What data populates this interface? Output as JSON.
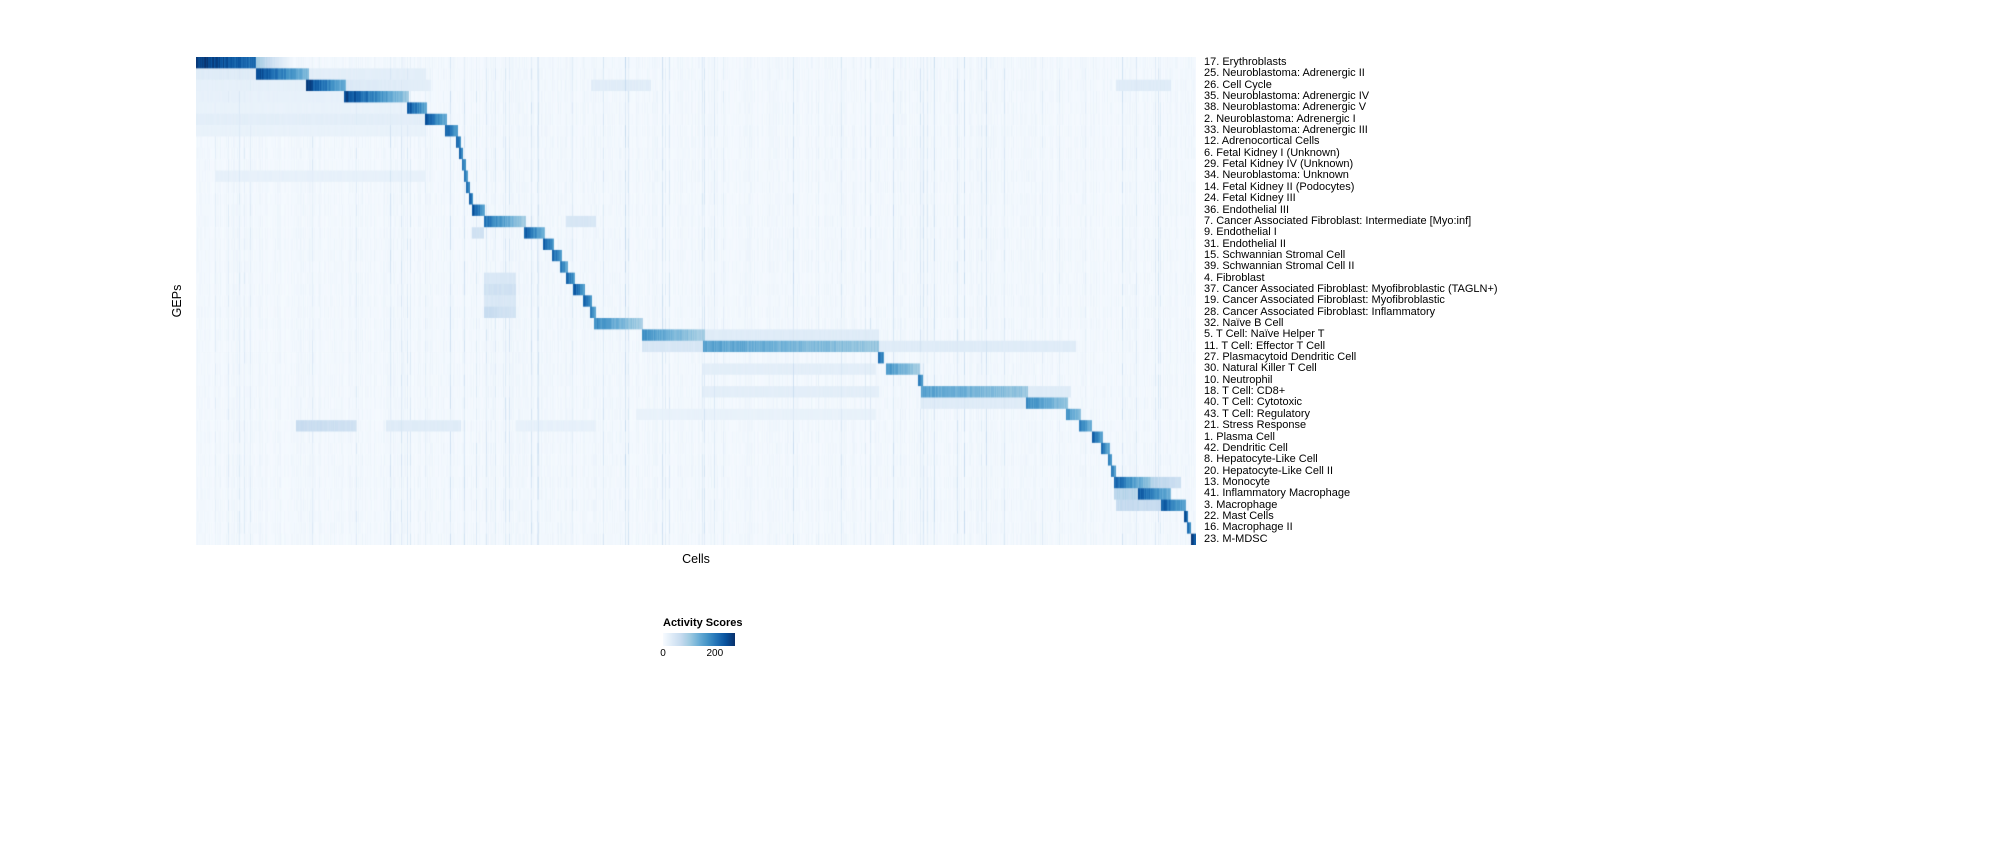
{
  "chart_data": {
    "type": "heatmap",
    "title": "",
    "xlabel": "Cells",
    "ylabel": "GEPs",
    "grid": false,
    "colormap": "Blues",
    "colormap_stops": [
      "#f7fbff",
      "#deebf7",
      "#c6dbef",
      "#9ecae1",
      "#6baed6",
      "#4292c6",
      "#2171b5",
      "#08519c",
      "#08306b"
    ],
    "score_scale_max": 255,
    "legend": {
      "title": "Activity Scores",
      "min_label": "0",
      "max_label": "200",
      "ticks": [
        0,
        200
      ],
      "position": "bottom-center"
    },
    "n_rows": 43,
    "row_axis": "GEPs (right-side labels)",
    "col_axis": "Cells (unlabeled columns, ~1000 shown)",
    "rows": [
      {
        "label": "17. Erythroblasts",
        "segments": [
          {
            "s": 0.0,
            "e": 0.06,
            "v": 250,
            "f": 0.25
          },
          {
            "s": 0.06,
            "e": 0.095,
            "v": 90,
            "f": 0.9
          }
        ]
      },
      {
        "label": "25. Neuroblastoma: Adrenergic II",
        "segments": [
          {
            "s": 0.0,
            "e": 0.06,
            "v": 30,
            "f": 0
          },
          {
            "s": 0.06,
            "e": 0.113,
            "v": 240,
            "f": 0.55
          },
          {
            "s": 0.113,
            "e": 0.23,
            "v": 25,
            "f": 0
          }
        ]
      },
      {
        "label": "26. Cell Cycle",
        "segments": [
          {
            "s": 0.0,
            "e": 0.11,
            "v": 22,
            "f": 0
          },
          {
            "s": 0.11,
            "e": 0.15,
            "v": 240,
            "f": 0.5
          },
          {
            "s": 0.15,
            "e": 0.235,
            "v": 35,
            "f": 0.3
          },
          {
            "s": 0.395,
            "e": 0.455,
            "v": 28,
            "f": 0
          },
          {
            "s": 0.92,
            "e": 0.975,
            "v": 30,
            "f": 0
          }
        ]
      },
      {
        "label": "35. Neuroblastoma: Adrenergic IV",
        "segments": [
          {
            "s": 0.0,
            "e": 0.148,
            "v": 20,
            "f": 0
          },
          {
            "s": 0.148,
            "e": 0.213,
            "v": 235,
            "f": 0.6
          }
        ]
      },
      {
        "label": "38. Neuroblastoma: Adrenergic V",
        "segments": [
          {
            "s": 0.0,
            "e": 0.21,
            "v": 18,
            "f": 0
          },
          {
            "s": 0.211,
            "e": 0.231,
            "v": 220,
            "f": 0.4
          }
        ]
      },
      {
        "label": "2. Neuroblastoma: Adrenergic I",
        "segments": [
          {
            "s": 0.0,
            "e": 0.229,
            "v": 25,
            "f": 0
          },
          {
            "s": 0.229,
            "e": 0.251,
            "v": 225,
            "f": 0.45
          }
        ]
      },
      {
        "label": "33. Neuroblastoma: Adrenergic III",
        "segments": [
          {
            "s": 0.0,
            "e": 0.23,
            "v": 18,
            "f": 0
          },
          {
            "s": 0.249,
            "e": 0.262,
            "v": 215,
            "f": 0.35
          }
        ]
      },
      {
        "label": "12. Adrenocortical Cells",
        "segments": [
          {
            "s": 0.26,
            "e": 0.2645,
            "v": 205,
            "f": 0.2
          }
        ]
      },
      {
        "label": "6. Fetal Kidney I (Unknown)",
        "segments": [
          {
            "s": 0.263,
            "e": 0.267,
            "v": 200,
            "f": 0.2
          }
        ]
      },
      {
        "label": "29. Fetal Kidney IV (Unknown)",
        "segments": [
          {
            "s": 0.2655,
            "e": 0.2695,
            "v": 195,
            "f": 0.2
          }
        ]
      },
      {
        "label": "34. Neuroblastoma: Unknown",
        "segments": [
          {
            "s": 0.02,
            "e": 0.23,
            "v": 20,
            "f": 0
          },
          {
            "s": 0.268,
            "e": 0.2715,
            "v": 190,
            "f": 0.2
          }
        ]
      },
      {
        "label": "14. Fetal Kidney II (Podocytes)",
        "segments": [
          {
            "s": 0.27,
            "e": 0.2738,
            "v": 200,
            "f": 0.2
          }
        ]
      },
      {
        "label": "24. Fetal Kidney III",
        "segments": [
          {
            "s": 0.2725,
            "e": 0.2765,
            "v": 205,
            "f": 0.2
          }
        ]
      },
      {
        "label": "36. Endothelial III",
        "segments": [
          {
            "s": 0.2755,
            "e": 0.2885,
            "v": 225,
            "f": 0.4
          }
        ]
      },
      {
        "label": "7. Cancer Associated Fibroblast: Intermediate [Myo:inf]",
        "segments": [
          {
            "s": 0.2875,
            "e": 0.33,
            "v": 190,
            "f": 0.55
          },
          {
            "s": 0.37,
            "e": 0.4,
            "v": 40,
            "f": 0
          }
        ]
      },
      {
        "label": "9. Endothelial I",
        "segments": [
          {
            "s": 0.2755,
            "e": 0.2875,
            "v": 50,
            "f": 0
          },
          {
            "s": 0.328,
            "e": 0.349,
            "v": 215,
            "f": 0.45
          }
        ]
      },
      {
        "label": "31. Endothelial II",
        "segments": [
          {
            "s": 0.347,
            "e": 0.358,
            "v": 215,
            "f": 0.35
          }
        ]
      },
      {
        "label": "15. Schwannian Stromal Cell",
        "segments": [
          {
            "s": 0.356,
            "e": 0.3655,
            "v": 205,
            "f": 0.3
          }
        ]
      },
      {
        "label": "39. Schwannian Stromal Cell II",
        "segments": [
          {
            "s": 0.3635,
            "e": 0.3715,
            "v": 190,
            "f": 0.3
          }
        ]
      },
      {
        "label": "4. Fibroblast",
        "segments": [
          {
            "s": 0.2875,
            "e": 0.32,
            "v": 38,
            "f": 0
          },
          {
            "s": 0.3695,
            "e": 0.379,
            "v": 205,
            "f": 0.3
          }
        ]
      },
      {
        "label": "37. Cancer Associated Fibroblast: Myofibroblastic (TAGLN+)",
        "segments": [
          {
            "s": 0.2875,
            "e": 0.32,
            "v": 50,
            "f": 0
          },
          {
            "s": 0.377,
            "e": 0.3885,
            "v": 215,
            "f": 0.35
          }
        ]
      },
      {
        "label": "19. Cancer Associated Fibroblast: Myofibroblastic",
        "segments": [
          {
            "s": 0.2875,
            "e": 0.32,
            "v": 38,
            "f": 0
          },
          {
            "s": 0.3865,
            "e": 0.396,
            "v": 205,
            "f": 0.3
          }
        ]
      },
      {
        "label": "28. Cancer Associated Fibroblast: Inflammatory",
        "segments": [
          {
            "s": 0.2875,
            "e": 0.32,
            "v": 62,
            "f": 0.3
          },
          {
            "s": 0.394,
            "e": 0.3995,
            "v": 180,
            "f": 0.3
          }
        ]
      },
      {
        "label": "32. Naïve B Cell",
        "segments": [
          {
            "s": 0.398,
            "e": 0.447,
            "v": 165,
            "f": 0.5
          }
        ]
      },
      {
        "label": "5. T Cell: Naïve Helper T",
        "segments": [
          {
            "s": 0.4455,
            "e": 0.509,
            "v": 155,
            "f": 0.45
          },
          {
            "s": 0.509,
            "e": 0.683,
            "v": 30,
            "f": 0
          }
        ]
      },
      {
        "label": "11. T Cell: Effector T Cell",
        "segments": [
          {
            "s": 0.4455,
            "e": 0.507,
            "v": 40,
            "f": 0
          },
          {
            "s": 0.507,
            "e": 0.6825,
            "v": 140,
            "f": 0.3
          },
          {
            "s": 0.6825,
            "e": 0.88,
            "v": 30,
            "f": 0
          }
        ]
      },
      {
        "label": "27. Plasmacytoid Dendritic Cell",
        "segments": [
          {
            "s": 0.6815,
            "e": 0.688,
            "v": 205,
            "f": 0.25
          }
        ]
      },
      {
        "label": "30. Natural Killer T Cell",
        "segments": [
          {
            "s": 0.507,
            "e": 0.68,
            "v": 25,
            "f": 0
          },
          {
            "s": 0.69,
            "e": 0.7235,
            "v": 155,
            "f": 0.45
          }
        ]
      },
      {
        "label": "10. Neutrophil",
        "segments": [
          {
            "s": 0.7215,
            "e": 0.727,
            "v": 180,
            "f": 0.25
          }
        ]
      },
      {
        "label": "18. T Cell: CD8+",
        "segments": [
          {
            "s": 0.507,
            "e": 0.683,
            "v": 25,
            "f": 0
          },
          {
            "s": 0.7245,
            "e": 0.832,
            "v": 140,
            "f": 0.3
          },
          {
            "s": 0.832,
            "e": 0.875,
            "v": 30,
            "f": 0
          }
        ]
      },
      {
        "label": "40. T Cell: Cytotoxic",
        "segments": [
          {
            "s": 0.7245,
            "e": 0.83,
            "v": 30,
            "f": 0
          },
          {
            "s": 0.83,
            "e": 0.872,
            "v": 165,
            "f": 0.4
          }
        ]
      },
      {
        "label": "43. T Cell: Regulatory",
        "segments": [
          {
            "s": 0.44,
            "e": 0.68,
            "v": 18,
            "f": 0
          },
          {
            "s": 0.87,
            "e": 0.8845,
            "v": 155,
            "f": 0.35
          }
        ]
      },
      {
        "label": "21. Stress Response",
        "segments": [
          {
            "s": 0.1,
            "e": 0.16,
            "v": 62,
            "f": 0.2
          },
          {
            "s": 0.19,
            "e": 0.265,
            "v": 30,
            "f": 0
          },
          {
            "s": 0.32,
            "e": 0.4,
            "v": 20,
            "f": 0
          },
          {
            "s": 0.883,
            "e": 0.8955,
            "v": 180,
            "f": 0.35
          }
        ]
      },
      {
        "label": "1. Plasma Cell",
        "segments": [
          {
            "s": 0.8955,
            "e": 0.9065,
            "v": 215,
            "f": 0.4
          }
        ]
      },
      {
        "label": "42. Dendritic Cell",
        "segments": [
          {
            "s": 0.905,
            "e": 0.9135,
            "v": 190,
            "f": 0.35
          }
        ]
      },
      {
        "label": "8. Hepatocyte-Like Cell",
        "segments": [
          {
            "s": 0.912,
            "e": 0.916,
            "v": 180,
            "f": 0.25
          }
        ]
      },
      {
        "label": "20. Hepatocyte-Like Cell II",
        "segments": [
          {
            "s": 0.915,
            "e": 0.9195,
            "v": 180,
            "f": 0.25
          }
        ]
      },
      {
        "label": "13. Monocyte",
        "segments": [
          {
            "s": 0.918,
            "e": 0.955,
            "v": 205,
            "f": 0.55
          },
          {
            "s": 0.955,
            "e": 0.985,
            "v": 75,
            "f": 0.3
          }
        ]
      },
      {
        "label": "41. Inflammatory Macrophage",
        "segments": [
          {
            "s": 0.918,
            "e": 0.942,
            "v": 75,
            "f": 0
          },
          {
            "s": 0.942,
            "e": 0.9745,
            "v": 215,
            "f": 0.45
          }
        ]
      },
      {
        "label": "3. Macrophage",
        "segments": [
          {
            "s": 0.92,
            "e": 0.9645,
            "v": 62,
            "f": 0
          },
          {
            "s": 0.9645,
            "e": 0.9895,
            "v": 215,
            "f": 0.4
          }
        ]
      },
      {
        "label": "22. Mast Cells",
        "segments": [
          {
            "s": 0.988,
            "e": 0.992,
            "v": 230,
            "f": 0.2
          }
        ]
      },
      {
        "label": "16. Macrophage II",
        "segments": [
          {
            "s": 0.9905,
            "e": 0.9945,
            "v": 205,
            "f": 0.2
          }
        ]
      },
      {
        "label": "23. M-MDSC",
        "segments": [
          {
            "s": 0.995,
            "e": 1.0,
            "v": 240,
            "f": 0.2
          }
        ]
      }
    ]
  }
}
